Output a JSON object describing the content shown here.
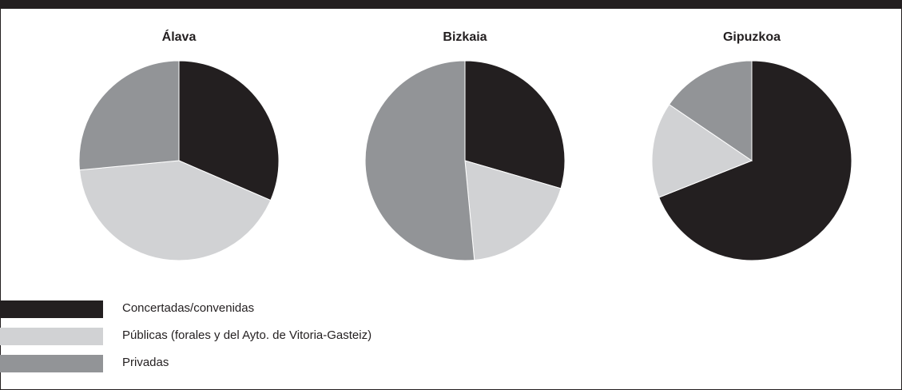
{
  "chart_data": {
    "type": "pie",
    "categories": [
      "Concertadas/convenidas",
      "Públicas (forales y del Ayto. de Vitoria-Gasteiz)",
      "Privadas"
    ],
    "colors": [
      "#231f20",
      "#d1d2d4",
      "#929497"
    ],
    "legend_position": "bottom-left",
    "charts": [
      {
        "title": "Álava",
        "values": [
          31.5,
          42.0,
          26.5
        ]
      },
      {
        "title": "Bizkaia",
        "values": [
          29.5,
          19.0,
          51.5
        ]
      },
      {
        "title": "Gipuzkoa",
        "values": [
          69.0,
          15.5,
          15.5
        ]
      }
    ]
  }
}
